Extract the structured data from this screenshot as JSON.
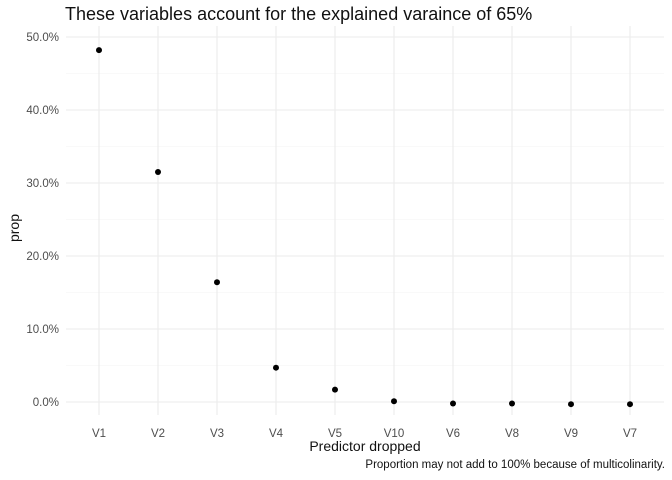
{
  "chart_data": {
    "type": "scatter",
    "title": "These variables account for the explained varaince of 65%",
    "xlabel": "Predictor dropped",
    "ylabel": "prop",
    "caption": "Proportion may not add to 100% because of multicolinarity.",
    "categories": [
      "V1",
      "V2",
      "V3",
      "V4",
      "V5",
      "V10",
      "V6",
      "V8",
      "V9",
      "V7"
    ],
    "values": [
      0.482,
      0.315,
      0.164,
      0.047,
      0.017,
      0.001,
      -0.002,
      -0.002,
      -0.003,
      -0.003
    ],
    "ylim": [
      -0.015,
      0.505
    ],
    "yticks": [
      0.0,
      0.1,
      0.2,
      0.3,
      0.4,
      0.5
    ],
    "ytick_labels": [
      "0.0%",
      "10.0%",
      "20.0%",
      "30.0%",
      "40.0%",
      "50.0%"
    ],
    "grid": true,
    "colors": {
      "point": "#000000",
      "grid_major": "#ebebeb",
      "grid_minor": "#f4f4f4"
    }
  }
}
